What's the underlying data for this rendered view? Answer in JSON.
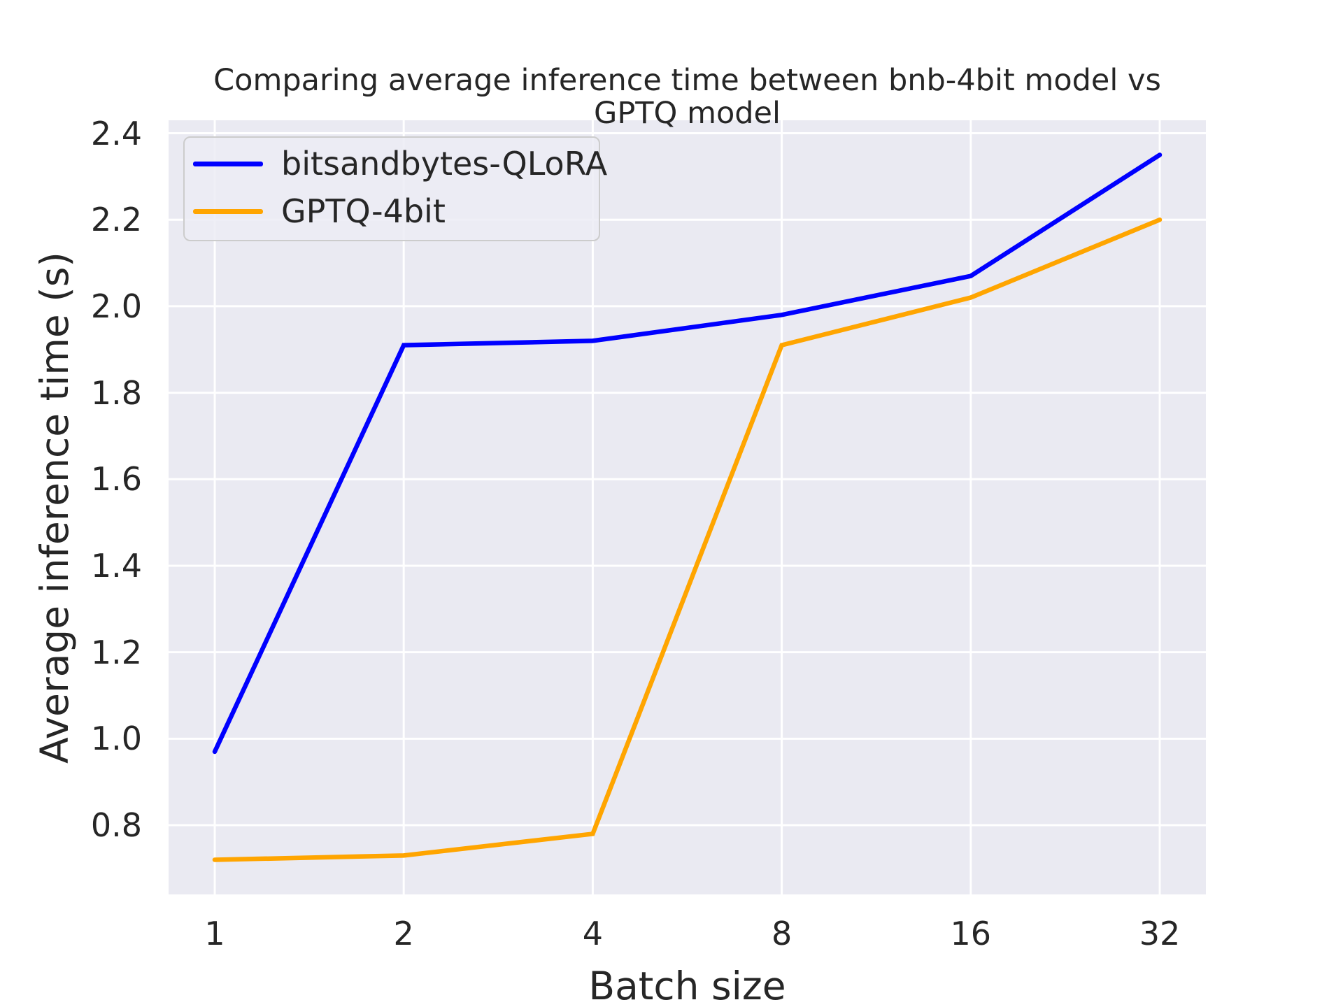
{
  "chart_data": {
    "type": "line",
    "title": "Comparing average inference time between bnb-4bit model vs GPTQ model",
    "xlabel": "Batch size",
    "ylabel": "Average inference time (s)",
    "categories": [
      1,
      2,
      4,
      8,
      16,
      32
    ],
    "x_tick_labels": [
      "1",
      "2",
      "4",
      "8",
      "16",
      "32"
    ],
    "y_ticks": [
      0.8,
      1.0,
      1.2,
      1.4,
      1.6,
      1.8,
      2.0,
      2.2,
      2.4
    ],
    "y_tick_labels": [
      "0.8",
      "1.0",
      "1.2",
      "1.4",
      "1.6",
      "1.8",
      "2.0",
      "2.2",
      "2.4"
    ],
    "ylim": [
      0.64,
      2.43
    ],
    "grid": true,
    "legend_position": "upper left",
    "series": [
      {
        "name": "bitsandbytes-QLoRA",
        "color": "#0000ff",
        "values": [
          0.97,
          1.91,
          1.92,
          1.98,
          2.07,
          2.35
        ]
      },
      {
        "name": "GPTQ-4bit",
        "color": "#ffa500",
        "values": [
          0.72,
          0.73,
          0.78,
          1.91,
          2.02,
          2.2
        ]
      }
    ],
    "colors": {
      "plot_background": "#eaeaf2",
      "grid": "#ffffff",
      "text": "#262626"
    }
  }
}
